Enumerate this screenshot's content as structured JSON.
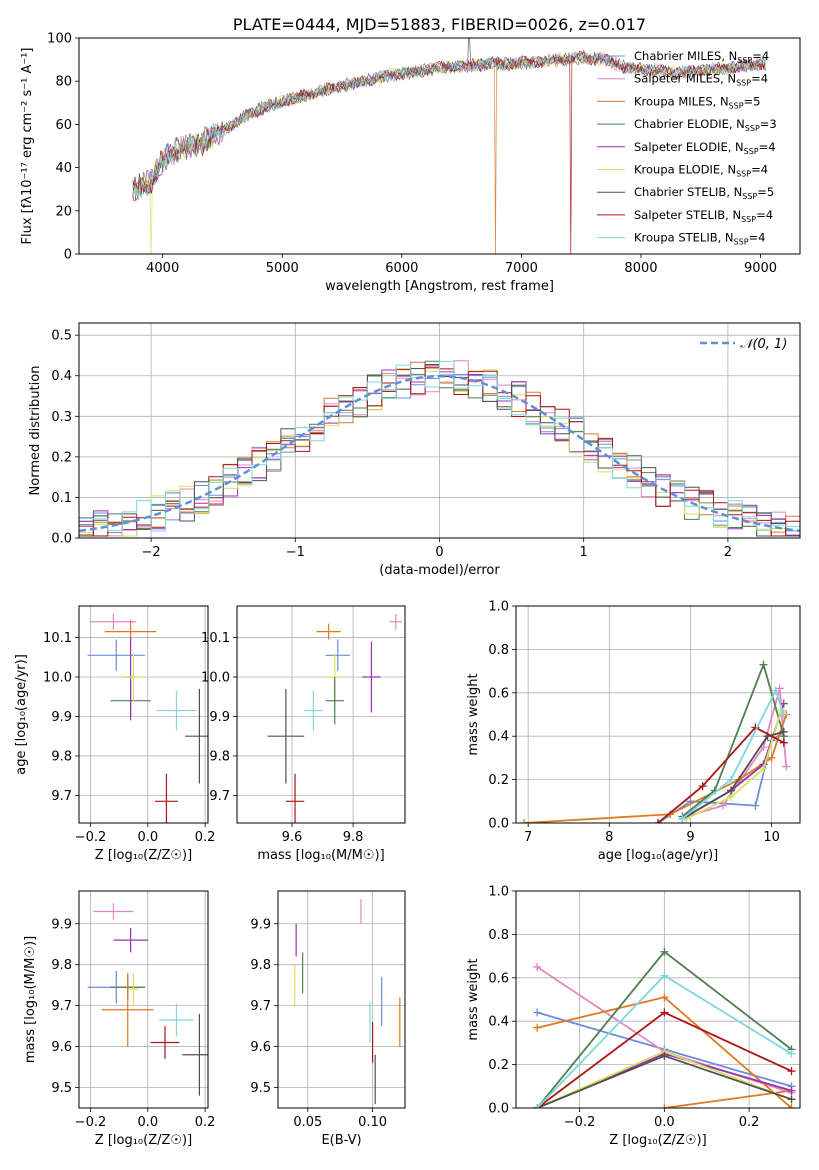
{
  "colors": {
    "chabrier_miles": "#6a8fd8",
    "salpeter_miles": "#e586c2",
    "kroupa_miles": "#d9782b",
    "chabrier_elodie": "#4f7f4f",
    "salpeter_elodie": "#9b30b8",
    "kroupa_elodie": "#d8e060",
    "chabrier_stelib": "#505050",
    "salpeter_stelib": "#aa1515",
    "kroupa_stelib": "#7fd6dd",
    "orange_series": "#e07820",
    "normal": "#5f8fdb"
  },
  "chart_data": [
    {
      "id": "spectrum",
      "type": "line",
      "title": "PLATE=0444, MJD=51883, FIBERID=0026, z=0.017",
      "xlabel": "wavelength [Angstrom, rest frame]",
      "ylabel": "Flux [fλ10⁻¹⁷ erg cm⁻² s⁻¹ A⁻¹]",
      "xlim": [
        3300,
        9330
      ],
      "ylim": [
        0,
        100
      ],
      "xticks": [
        "4000",
        "5000",
        "6000",
        "7000",
        "8000",
        "9000"
      ],
      "yticks": [
        "0",
        "20",
        "40",
        "60",
        "80",
        "100"
      ],
      "grid": false,
      "legend_position": "top-right",
      "x": [
        3750,
        3900,
        4000,
        4100,
        4300,
        4500,
        4700,
        4900,
        5100,
        5300,
        5500,
        5700,
        5900,
        6100,
        6300,
        6500,
        6700,
        6900,
        7100,
        7300,
        7500,
        7700,
        7900,
        8100,
        8300,
        8500,
        8700,
        9000
      ],
      "y": [
        30,
        33,
        44,
        48,
        51,
        57,
        64,
        69,
        72,
        75,
        78,
        80,
        83,
        84,
        86,
        87,
        88,
        88,
        89,
        90,
        91,
        90,
        86,
        85,
        84,
        85,
        86,
        88
      ],
      "series": [
        {
          "name": "Chabrier MILES, N_SSP=4",
          "color_key": "chabrier_miles"
        },
        {
          "name": "Salpeter MILES, N_SSP=4",
          "color_key": "salpeter_miles"
        },
        {
          "name": "Kroupa MILES, N_SSP=5",
          "color_key": "kroupa_miles"
        },
        {
          "name": "Chabrier ELODIE, N_SSP=3",
          "color_key": "chabrier_elodie"
        },
        {
          "name": "Salpeter ELODIE, N_SSP=4",
          "color_key": "salpeter_elodie"
        },
        {
          "name": "Kroupa ELODIE, N_SSP=4",
          "color_key": "kroupa_elodie"
        },
        {
          "name": "Chabrier STELIB, N_SSP=5",
          "color_key": "chabrier_stelib"
        },
        {
          "name": "Salpeter STELIB, N_SSP=4",
          "color_key": "salpeter_stelib"
        },
        {
          "name": "Kroupa STELIB, N_SSP=4",
          "color_key": "kroupa_stelib"
        }
      ],
      "legend_labels": [
        {
          "base": "Chabrier MILES, N",
          "sub": "SSP",
          "tail": "=4"
        },
        {
          "base": "Salpeter MILES, N",
          "sub": "SSP",
          "tail": "=4"
        },
        {
          "base": "Kroupa MILES, N",
          "sub": "SSP",
          "tail": "=5"
        },
        {
          "base": "Chabrier ELODIE, N",
          "sub": "SSP",
          "tail": "=3"
        },
        {
          "base": "Salpeter ELODIE, N",
          "sub": "SSP",
          "tail": "=4"
        },
        {
          "base": "Kroupa ELODIE, N",
          "sub": "SSP",
          "tail": "=4"
        },
        {
          "base": "Chabrier STELIB, N",
          "sub": "SSP",
          "tail": "=5"
        },
        {
          "base": "Salpeter STELIB, N",
          "sub": "SSP",
          "tail": "=4"
        },
        {
          "base": "Kroupa STELIB, N",
          "sub": "SSP",
          "tail": "=4"
        }
      ]
    },
    {
      "id": "residuals",
      "type": "line",
      "xlabel": "(data-model)/error",
      "ylabel": "Normed distribution",
      "xlim": [
        -2.5,
        2.5
      ],
      "ylim": [
        0,
        0.53
      ],
      "xticks": [
        "−2",
        "−1",
        "0",
        "1",
        "2"
      ],
      "yticks": [
        "0.0",
        "0.1",
        "0.2",
        "0.3",
        "0.4",
        "0.5"
      ],
      "grid": true,
      "legend_position": "top-right",
      "legend": "𝒩(0, 1)",
      "bin_width": 0.1,
      "x": [
        -2.4,
        -2.0,
        -1.6,
        -1.2,
        -0.8,
        -0.4,
        0.0,
        0.4,
        0.8,
        1.2,
        1.6,
        2.0,
        2.4
      ],
      "y": [
        0.02,
        0.05,
        0.11,
        0.2,
        0.29,
        0.37,
        0.4,
        0.37,
        0.29,
        0.2,
        0.11,
        0.05,
        0.02
      ]
    },
    {
      "id": "age_vs_Z",
      "type": "scatter",
      "xlabel": "Z [log₁₀(Z/Z☉)]",
      "ylabel": "age  [log₁₀(age/yr)]",
      "xlim": [
        -0.24,
        0.21
      ],
      "ylim": [
        9.63,
        10.18
      ],
      "xticks": [
        "−0.2",
        "0.0",
        "0.2"
      ],
      "yticks": [
        "9.7",
        "9.8",
        "9.9",
        "10.0",
        "10.1"
      ],
      "grid": true,
      "series": [
        {
          "color_key": "chabrier_miles",
          "x": -0.11,
          "y": 10.055,
          "xerr": 0.1,
          "yerr": 0.04
        },
        {
          "color_key": "salpeter_miles",
          "x": -0.12,
          "y": 10.14,
          "xerr": 0.08,
          "yerr": 0.02
        },
        {
          "color_key": "orange_series",
          "x": -0.06,
          "y": 10.115,
          "xerr": 0.09,
          "yerr": 0.03
        },
        {
          "color_key": "chabrier_elodie",
          "x": -0.06,
          "y": 9.94,
          "xerr": 0.07,
          "yerr": 0.05
        },
        {
          "color_key": "salpeter_elodie",
          "x": -0.06,
          "y": 10.0,
          "xerr": 0.02,
          "yerr": 0.1
        },
        {
          "color_key": "kroupa_elodie",
          "x": -0.05,
          "y": 10.0,
          "xerr": 0.04,
          "yerr": 0.06
        },
        {
          "color_key": "kroupa_stelib",
          "x": 0.1,
          "y": 9.915,
          "xerr": 0.07,
          "yerr": 0.05
        },
        {
          "color_key": "chabrier_stelib",
          "x": 0.18,
          "y": 9.85,
          "xerr": 0.05,
          "yerr": 0.12
        },
        {
          "color_key": "salpeter_stelib",
          "x": 0.065,
          "y": 9.685,
          "xerr": 0.04,
          "yerr": 0.07
        }
      ]
    },
    {
      "id": "age_vs_mass",
      "type": "scatter",
      "xlabel": "mass [log₁₀(M/M☉)]",
      "ylabel": "",
      "xlim": [
        9.42,
        9.97
      ],
      "ylim": [
        9.63,
        10.18
      ],
      "xticks": [
        "9.6",
        "9.8"
      ],
      "yticks": [
        "9.7",
        "9.8",
        "9.9",
        "10.0",
        "10.1"
      ],
      "grid": true,
      "series": [
        {
          "color_key": "salpeter_miles",
          "x": 9.94,
          "y": 10.14,
          "xerr": 0.02,
          "yerr": 0.02
        },
        {
          "color_key": "orange_series",
          "x": 9.72,
          "y": 10.115,
          "xerr": 0.04,
          "yerr": 0.02
        },
        {
          "color_key": "chabrier_miles",
          "x": 9.75,
          "y": 10.055,
          "xerr": 0.04,
          "yerr": 0.04
        },
        {
          "color_key": "kroupa_elodie",
          "x": 9.74,
          "y": 10.0,
          "xerr": 0.03,
          "yerr": 0.06
        },
        {
          "color_key": "salpeter_elodie",
          "x": 9.86,
          "y": 10.0,
          "xerr": 0.03,
          "yerr": 0.09
        },
        {
          "color_key": "chabrier_elodie",
          "x": 9.74,
          "y": 9.94,
          "xerr": 0.03,
          "yerr": 0.06
        },
        {
          "color_key": "kroupa_stelib",
          "x": 9.67,
          "y": 9.915,
          "xerr": 0.03,
          "yerr": 0.05
        },
        {
          "color_key": "chabrier_stelib",
          "x": 9.58,
          "y": 9.85,
          "xerr": 0.06,
          "yerr": 0.12
        },
        {
          "color_key": "salpeter_stelib",
          "x": 9.61,
          "y": 9.685,
          "xerr": 0.03,
          "yerr": 0.07
        }
      ]
    },
    {
      "id": "mass_weight_vs_age",
      "type": "line",
      "xlabel": "age  [log₁₀(age/yr)]",
      "ylabel": "mass weight",
      "xlim": [
        6.85,
        10.35
      ],
      "ylim": [
        0,
        1
      ],
      "xticks": [
        "7",
        "8",
        "9",
        "10"
      ],
      "yticks": [
        "0.0",
        "0.2",
        "0.4",
        "0.6",
        "0.8",
        "1.0"
      ],
      "grid": true,
      "series": [
        {
          "color_key": "chabrier_miles",
          "x": [
            8.6,
            9.0,
            9.8,
            10.0,
            10.15
          ],
          "y": [
            0.0,
            0.1,
            0.08,
            0.38,
            0.42
          ]
        },
        {
          "color_key": "salpeter_miles",
          "x": [
            8.95,
            9.4,
            9.9,
            10.1,
            10.18
          ],
          "y": [
            0.03,
            0.08,
            0.35,
            0.62,
            0.26
          ]
        },
        {
          "color_key": "orange_series",
          "x": [
            6.95,
            8.75,
            9.6,
            10.0,
            10.18
          ],
          "y": [
            0.0,
            0.04,
            0.2,
            0.3,
            0.5
          ]
        },
        {
          "color_key": "chabrier_elodie",
          "x": [
            8.9,
            9.3,
            9.9,
            10.15
          ],
          "y": [
            0.03,
            0.15,
            0.73,
            0.4
          ]
        },
        {
          "color_key": "salpeter_elodie",
          "x": [
            8.95,
            9.5,
            9.9,
            10.15
          ],
          "y": [
            0.03,
            0.15,
            0.27,
            0.55
          ]
        },
        {
          "color_key": "kroupa_elodie",
          "x": [
            8.95,
            9.5,
            9.9,
            10.12
          ],
          "y": [
            0.02,
            0.12,
            0.25,
            0.52
          ]
        },
        {
          "color_key": "chabrier_stelib",
          "x": [
            8.9,
            9.5,
            9.95,
            10.15
          ],
          "y": [
            0.02,
            0.15,
            0.4,
            0.42
          ]
        },
        {
          "color_key": "salpeter_stelib",
          "x": [
            8.6,
            9.15,
            9.8,
            10.15
          ],
          "y": [
            0.0,
            0.17,
            0.44,
            0.37
          ]
        },
        {
          "color_key": "kroupa_stelib",
          "x": [
            8.9,
            9.5,
            10.05,
            10.15
          ],
          "y": [
            0.02,
            0.2,
            0.61,
            0.5
          ]
        }
      ]
    },
    {
      "id": "mass_vs_Z",
      "type": "scatter",
      "xlabel": "Z [log₁₀(Z/Z☉)]",
      "ylabel": "mass [log₁₀(M/M☉)]",
      "xlim": [
        -0.24,
        0.21
      ],
      "ylim": [
        9.45,
        9.98
      ],
      "xticks": [
        "−0.2",
        "0.0",
        "0.2"
      ],
      "yticks": [
        "9.5",
        "9.6",
        "9.7",
        "9.8",
        "9.9"
      ],
      "grid": true,
      "series": [
        {
          "color_key": "salpeter_miles",
          "x": -0.12,
          "y": 9.93,
          "xerr": 0.07,
          "yerr": 0.02
        },
        {
          "color_key": "salpeter_elodie",
          "x": -0.06,
          "y": 9.86,
          "xerr": 0.06,
          "yerr": 0.03
        },
        {
          "color_key": "chabrier_miles",
          "x": -0.11,
          "y": 9.745,
          "xerr": 0.1,
          "yerr": 0.04
        },
        {
          "color_key": "chabrier_elodie",
          "x": -0.07,
          "y": 9.745,
          "xerr": 0.06,
          "yerr": 0.03
        },
        {
          "color_key": "kroupa_elodie",
          "x": -0.05,
          "y": 9.74,
          "xerr": 0.02,
          "yerr": 0.04
        },
        {
          "color_key": "orange_series",
          "x": -0.07,
          "y": 9.69,
          "xerr": 0.09,
          "yerr": 0.09
        },
        {
          "color_key": "kroupa_stelib",
          "x": 0.1,
          "y": 9.665,
          "xerr": 0.06,
          "yerr": 0.04
        },
        {
          "color_key": "salpeter_stelib",
          "x": 0.06,
          "y": 9.61,
          "xerr": 0.05,
          "yerr": 0.04
        },
        {
          "color_key": "chabrier_stelib",
          "x": 0.18,
          "y": 9.58,
          "xerr": 0.06,
          "yerr": 0.1
        }
      ]
    },
    {
      "id": "mass_vs_ebv",
      "type": "scatter",
      "xlabel": "E(B-V)",
      "ylabel": "",
      "xlim": [
        0.027,
        0.125
      ],
      "ylim": [
        9.45,
        9.98
      ],
      "xticks": [
        "0.05",
        "0.10"
      ],
      "yticks": [
        "9.5",
        "9.6",
        "9.7",
        "9.8",
        "9.9"
      ],
      "grid": true,
      "series": [
        {
          "color_key": "salpeter_miles",
          "x": 0.091,
          "y": 9.93,
          "xerr": 0.0,
          "yerr": 0.03
        },
        {
          "color_key": "salpeter_elodie",
          "x": 0.041,
          "y": 9.86,
          "xerr": 0.0,
          "yerr": 0.04
        },
        {
          "color_key": "chabrier_elodie",
          "x": 0.046,
          "y": 9.78,
          "xerr": 0.0,
          "yerr": 0.05
        },
        {
          "color_key": "kroupa_elodie",
          "x": 0.04,
          "y": 9.75,
          "xerr": 0.0,
          "yerr": 0.05
        },
        {
          "color_key": "chabrier_miles",
          "x": 0.107,
          "y": 9.71,
          "xerr": 0.0,
          "yerr": 0.06
        },
        {
          "color_key": "orange_series",
          "x": 0.121,
          "y": 9.66,
          "xerr": 0.0,
          "yerr": 0.06
        },
        {
          "color_key": "kroupa_stelib",
          "x": 0.098,
          "y": 9.66,
          "xerr": 0.0,
          "yerr": 0.05
        },
        {
          "color_key": "salpeter_stelib",
          "x": 0.1,
          "y": 9.61,
          "xerr": 0.0,
          "yerr": 0.05
        },
        {
          "color_key": "chabrier_stelib",
          "x": 0.102,
          "y": 9.52,
          "xerr": 0.0,
          "yerr": 0.06
        }
      ]
    },
    {
      "id": "mass_weight_vs_Z",
      "type": "line",
      "xlabel": "Z [log₁₀(Z/Z☉)]",
      "ylabel": "mass weight",
      "xlim": [
        -0.35,
        0.32
      ],
      "ylim": [
        0,
        1
      ],
      "xticks": [
        "−0.2",
        "0.0",
        "0.2"
      ],
      "yticks": [
        "0.0",
        "0.2",
        "0.4",
        "0.6",
        "0.8",
        "1.0"
      ],
      "grid": true,
      "series": [
        {
          "color_key": "chabrier_miles",
          "x": [
            -0.3,
            0.0,
            0.3
          ],
          "y": [
            0.44,
            0.27,
            0.1
          ]
        },
        {
          "color_key": "salpeter_miles",
          "x": [
            -0.3,
            0.0,
            0.3
          ],
          "y": [
            0.65,
            0.26,
            0.07
          ]
        },
        {
          "color_key": "orange_series",
          "x": [
            -0.3,
            0.0,
            0.3
          ],
          "y": [
            0.37,
            0.51,
            0.0
          ]
        },
        {
          "color_key": "orange_series",
          "x": [
            0.0,
            0.3
          ],
          "y": [
            0.0,
            0.08
          ]
        },
        {
          "color_key": "chabrier_elodie",
          "x": [
            -0.3,
            0.0,
            0.3
          ],
          "y": [
            0.0,
            0.72,
            0.27
          ]
        },
        {
          "color_key": "salpeter_elodie",
          "x": [
            -0.3,
            0.0,
            0.3
          ],
          "y": [
            0.0,
            0.25,
            0.08
          ]
        },
        {
          "color_key": "kroupa_elodie",
          "x": [
            -0.3,
            0.0,
            0.3
          ],
          "y": [
            0.0,
            0.26,
            0.04
          ]
        },
        {
          "color_key": "chabrier_stelib",
          "x": [
            -0.3,
            0.0,
            0.3
          ],
          "y": [
            0.0,
            0.24,
            0.04
          ]
        },
        {
          "color_key": "salpeter_stelib",
          "x": [
            -0.3,
            0.0,
            0.3
          ],
          "y": [
            0.0,
            0.44,
            0.17
          ]
        },
        {
          "color_key": "kroupa_stelib",
          "x": [
            -0.3,
            0.0,
            0.3
          ],
          "y": [
            0.0,
            0.61,
            0.25
          ]
        }
      ]
    }
  ]
}
